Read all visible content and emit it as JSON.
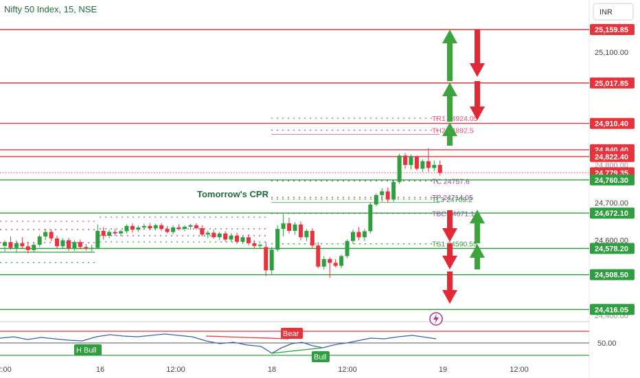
{
  "chart_data": {
    "type": "candlestick",
    "title": "Nifty 50 Index, 15, NSE",
    "currency": "INR",
    "y_ticks": [
      "25,100.00",
      "24,700.00",
      "24,600.00"
    ],
    "y_ticks_partial": [
      "24,800.00",
      "24,400.00"
    ],
    "x_ticks": [
      "2:00",
      "16",
      "12:00",
      "18",
      "12:00",
      "19",
      "12:00"
    ],
    "levels": [
      {
        "value": 25159.85,
        "label": "25,159.85",
        "color": "#e8323c",
        "kind": "resistance"
      },
      {
        "value": 25017.85,
        "label": "25,017.85",
        "color": "#e8323c",
        "kind": "resistance"
      },
      {
        "value": 24910.4,
        "label": "24,910.40",
        "color": "#e8323c",
        "kind": "resistance"
      },
      {
        "value": 24840.4,
        "label": "24,840.40",
        "color": "#e8323c",
        "kind": "resistance"
      },
      {
        "value": 24822.4,
        "label": "24,822.40",
        "color": "#e8323c",
        "kind": "resistance"
      },
      {
        "value": 24779.35,
        "label": "24,779.35",
        "color": "#e8323c",
        "kind": "last_price"
      },
      {
        "value": 24760.3,
        "label": "24,760.30",
        "color": "#2e9e3e",
        "kind": "support"
      },
      {
        "value": 24672.1,
        "label": "24,672.10",
        "color": "#2e9e3e",
        "kind": "support"
      },
      {
        "value": 24578.2,
        "label": "24,578.20",
        "color": "#2e9e3e",
        "kind": "support"
      },
      {
        "value": 24508.5,
        "label": "24,508.50",
        "color": "#2e9e3e",
        "kind": "support"
      },
      {
        "value": 24416.05,
        "label": "24,416.05",
        "color": "#2e9e3e",
        "kind": "support"
      }
    ],
    "cpr_levels": [
      {
        "text": "TR1 24924.05",
        "value": 24924.05,
        "color": "#e0507a"
      },
      {
        "text": "TH2 24892.5",
        "value": 24892.5,
        "color": "#e0507a"
      },
      {
        "text": "TC 24757.6",
        "value": 24757.6,
        "color": "#9a3aa8"
      },
      {
        "text": "TP 24714.05",
        "value": 24714.05,
        "color": "#9a3aa8"
      },
      {
        "text": "TL3 24709.2",
        "value": 24709.2,
        "color": "#2e9e3e"
      },
      {
        "text": "TBC 24671.1",
        "value": 24671.1,
        "color": "#9a3aa8"
      },
      {
        "text": "TS1 24590.55",
        "value": 24590.55,
        "color": "#2e9e3e"
      }
    ],
    "annotation": "Tomorrow's CPR",
    "oscillator": {
      "level_label": "50.00",
      "tags": [
        "H Bull",
        "Bear",
        "Bull"
      ]
    },
    "candles": [
      {
        "t": 0,
        "o": 24585,
        "h": 24600,
        "l": 24570,
        "c": 24595
      },
      {
        "t": 1,
        "o": 24595,
        "h": 24610,
        "l": 24575,
        "c": 24580
      },
      {
        "t": 2,
        "o": 24580,
        "h": 24600,
        "l": 24568,
        "c": 24592
      },
      {
        "t": 3,
        "o": 24592,
        "h": 24608,
        "l": 24578,
        "c": 24584
      },
      {
        "t": 4,
        "o": 24584,
        "h": 24596,
        "l": 24565,
        "c": 24574
      },
      {
        "t": 5,
        "o": 24574,
        "h": 24592,
        "l": 24568,
        "c": 24588
      },
      {
        "t": 6,
        "o": 24588,
        "h": 24615,
        "l": 24582,
        "c": 24610
      },
      {
        "t": 7,
        "o": 24610,
        "h": 24630,
        "l": 24600,
        "c": 24622
      },
      {
        "t": 8,
        "o": 24622,
        "h": 24628,
        "l": 24598,
        "c": 24605
      },
      {
        "t": 9,
        "o": 24605,
        "h": 24612,
        "l": 24578,
        "c": 24584
      },
      {
        "t": 10,
        "o": 24584,
        "h": 24605,
        "l": 24578,
        "c": 24600
      },
      {
        "t": 11,
        "o": 24600,
        "h": 24606,
        "l": 24572,
        "c": 24578
      },
      {
        "t": 12,
        "o": 24578,
        "h": 24600,
        "l": 24572,
        "c": 24595
      },
      {
        "t": 13,
        "o": 24595,
        "h": 24602,
        "l": 24576,
        "c": 24582
      },
      {
        "t": 14,
        "o": 24582,
        "h": 24590,
        "l": 24572,
        "c": 24578
      },
      {
        "t": 15,
        "o": 24578,
        "h": 24588,
        "l": 24570,
        "c": 24580
      },
      {
        "t": 16,
        "o": 24580,
        "h": 24642,
        "l": 24578,
        "c": 24625
      },
      {
        "t": 17,
        "o": 24625,
        "h": 24635,
        "l": 24602,
        "c": 24612
      },
      {
        "t": 18,
        "o": 24612,
        "h": 24628,
        "l": 24605,
        "c": 24622
      },
      {
        "t": 19,
        "o": 24622,
        "h": 24630,
        "l": 24612,
        "c": 24618
      },
      {
        "t": 20,
        "o": 24618,
        "h": 24628,
        "l": 24610,
        "c": 24624
      },
      {
        "t": 21,
        "o": 24624,
        "h": 24642,
        "l": 24618,
        "c": 24638
      },
      {
        "t": 22,
        "o": 24638,
        "h": 24645,
        "l": 24620,
        "c": 24628
      },
      {
        "t": 23,
        "o": 24628,
        "h": 24640,
        "l": 24622,
        "c": 24634
      },
      {
        "t": 24,
        "o": 24634,
        "h": 24644,
        "l": 24628,
        "c": 24638
      },
      {
        "t": 25,
        "o": 24638,
        "h": 24646,
        "l": 24626,
        "c": 24632
      },
      {
        "t": 26,
        "o": 24632,
        "h": 24644,
        "l": 24626,
        "c": 24640
      },
      {
        "t": 27,
        "o": 24640,
        "h": 24646,
        "l": 24624,
        "c": 24630
      },
      {
        "t": 28,
        "o": 24630,
        "h": 24638,
        "l": 24618,
        "c": 24622
      },
      {
        "t": 29,
        "o": 24622,
        "h": 24640,
        "l": 24616,
        "c": 24634
      },
      {
        "t": 30,
        "o": 24634,
        "h": 24642,
        "l": 24626,
        "c": 24630
      },
      {
        "t": 31,
        "o": 24630,
        "h": 24640,
        "l": 24624,
        "c": 24636
      },
      {
        "t": 32,
        "o": 24636,
        "h": 24644,
        "l": 24628,
        "c": 24640
      },
      {
        "t": 33,
        "o": 24640,
        "h": 24646,
        "l": 24628,
        "c": 24632
      },
      {
        "t": 34,
        "o": 24632,
        "h": 24640,
        "l": 24610,
        "c": 24615
      },
      {
        "t": 35,
        "o": 24615,
        "h": 24626,
        "l": 24605,
        "c": 24620
      },
      {
        "t": 36,
        "o": 24620,
        "h": 24628,
        "l": 24604,
        "c": 24608
      },
      {
        "t": 37,
        "o": 24608,
        "h": 24622,
        "l": 24600,
        "c": 24618
      },
      {
        "t": 38,
        "o": 24618,
        "h": 24624,
        "l": 24596,
        "c": 24602
      },
      {
        "t": 39,
        "o": 24602,
        "h": 24618,
        "l": 24596,
        "c": 24612
      },
      {
        "t": 40,
        "o": 24612,
        "h": 24620,
        "l": 24590,
        "c": 24596
      },
      {
        "t": 41,
        "o": 24596,
        "h": 24612,
        "l": 24590,
        "c": 24608
      },
      {
        "t": 42,
        "o": 24608,
        "h": 24616,
        "l": 24586,
        "c": 24592
      },
      {
        "t": 43,
        "o": 24592,
        "h": 24600,
        "l": 24578,
        "c": 24585
      },
      {
        "t": 44,
        "o": 24585,
        "h": 24592,
        "l": 24580,
        "c": 24588
      },
      {
        "t": 45,
        "o": 24582,
        "h": 24595,
        "l": 24505,
        "c": 24520
      },
      {
        "t": 46,
        "o": 24520,
        "h": 24582,
        "l": 24510,
        "c": 24575
      },
      {
        "t": 47,
        "o": 24575,
        "h": 24640,
        "l": 24570,
        "c": 24630
      },
      {
        "t": 48,
        "o": 24630,
        "h": 24668,
        "l": 24610,
        "c": 24645
      },
      {
        "t": 49,
        "o": 24645,
        "h": 24660,
        "l": 24618,
        "c": 24625
      },
      {
        "t": 50,
        "o": 24625,
        "h": 24648,
        "l": 24615,
        "c": 24642
      },
      {
        "t": 51,
        "o": 24642,
        "h": 24650,
        "l": 24600,
        "c": 24608
      },
      {
        "t": 52,
        "o": 24608,
        "h": 24630,
        "l": 24598,
        "c": 24625
      },
      {
        "t": 53,
        "o": 24625,
        "h": 24632,
        "l": 24580,
        "c": 24586
      },
      {
        "t": 54,
        "o": 24586,
        "h": 24595,
        "l": 24525,
        "c": 24530
      },
      {
        "t": 55,
        "o": 24530,
        "h": 24558,
        "l": 24522,
        "c": 24550
      },
      {
        "t": 56,
        "o": 24550,
        "h": 24555,
        "l": 24500,
        "c": 24540
      },
      {
        "t": 57,
        "o": 24540,
        "h": 24550,
        "l": 24528,
        "c": 24532
      },
      {
        "t": 58,
        "o": 24532,
        "h": 24562,
        "l": 24526,
        "c": 24558
      },
      {
        "t": 59,
        "o": 24558,
        "h": 24602,
        "l": 24552,
        "c": 24598
      },
      {
        "t": 60,
        "o": 24598,
        "h": 24628,
        "l": 24590,
        "c": 24622
      },
      {
        "t": 61,
        "o": 24622,
        "h": 24635,
        "l": 24600,
        "c": 24608
      },
      {
        "t": 62,
        "o": 24608,
        "h": 24630,
        "l": 24598,
        "c": 24624
      },
      {
        "t": 63,
        "o": 24624,
        "h": 24700,
        "l": 24618,
        "c": 24695
      },
      {
        "t": 64,
        "o": 24695,
        "h": 24725,
        "l": 24690,
        "c": 24720
      },
      {
        "t": 65,
        "o": 24720,
        "h": 24738,
        "l": 24702,
        "c": 24730
      },
      {
        "t": 66,
        "o": 24730,
        "h": 24740,
        "l": 24700,
        "c": 24708
      },
      {
        "t": 67,
        "o": 24708,
        "h": 24760,
        "l": 24702,
        "c": 24755
      },
      {
        "t": 68,
        "o": 24755,
        "h": 24830,
        "l": 24750,
        "c": 24825
      },
      {
        "t": 69,
        "o": 24825,
        "h": 24832,
        "l": 24790,
        "c": 24800
      },
      {
        "t": 70,
        "o": 24800,
        "h": 24828,
        "l": 24788,
        "c": 24822
      },
      {
        "t": 71,
        "o": 24822,
        "h": 24825,
        "l": 24785,
        "c": 24790
      },
      {
        "t": 72,
        "o": 24790,
        "h": 24815,
        "l": 24782,
        "c": 24810
      },
      {
        "t": 73,
        "o": 24810,
        "h": 24845,
        "l": 24782,
        "c": 24792
      },
      {
        "t": 74,
        "o": 24792,
        "h": 24812,
        "l": 24784,
        "c": 24800
      },
      {
        "t": 75,
        "o": 24800,
        "h": 24812,
        "l": 24772,
        "c": 24779
      }
    ]
  }
}
